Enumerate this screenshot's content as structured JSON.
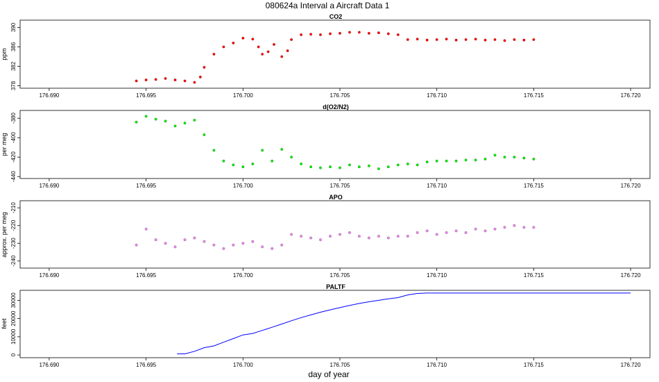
{
  "figure": {
    "title": "080624a   Interval a Aircraft Data 1",
    "xlabel": "day of year"
  },
  "colors": {
    "co2": "#ff0000",
    "o2n2": "#00ee00",
    "apo": "#ee82ee",
    "paltf": "#0000ff",
    "outline": "#000000"
  },
  "chart_data": [
    {
      "type": "scatter",
      "title": "CO2",
      "ylabel": "ppm",
      "xlim": [
        176.6885,
        176.721
      ],
      "ylim": [
        377.5,
        391.5
      ],
      "xticks": [
        176.69,
        176.695,
        176.7,
        176.705,
        176.71,
        176.715,
        176.72
      ],
      "xticklabels": [
        "176.690",
        "176.695",
        "176.700",
        "176.705",
        "176.710",
        "176.715",
        "176.720"
      ],
      "yticks": [
        378,
        382,
        386,
        390
      ],
      "yticklabels": [
        "378",
        "382",
        "386",
        "390"
      ],
      "color": "#ff0000",
      "x": [
        176.6945,
        176.695,
        176.6955,
        176.696,
        176.6965,
        176.697,
        176.6975,
        176.6978,
        176.698,
        176.6985,
        176.699,
        176.6995,
        176.7,
        176.7005,
        176.7008,
        176.701,
        176.7013,
        176.7016,
        176.702,
        176.7023,
        176.7025,
        176.703,
        176.7035,
        176.704,
        176.7045,
        176.705,
        176.7055,
        176.706,
        176.7065,
        176.707,
        176.7075,
        176.708,
        176.7085,
        176.709,
        176.7095,
        176.71,
        176.7105,
        176.711,
        176.7115,
        176.712,
        176.7125,
        176.713,
        176.7135,
        176.714,
        176.7145,
        176.715
      ],
      "y": [
        379.0,
        379.2,
        379.3,
        379.5,
        379.2,
        379.0,
        378.7,
        379.8,
        381.8,
        384.5,
        386.0,
        386.8,
        387.8,
        387.6,
        386.0,
        384.5,
        385.0,
        386.5,
        384.0,
        385.2,
        387.5,
        388.5,
        388.6,
        388.5,
        388.7,
        388.8,
        389.0,
        389.0,
        388.8,
        388.9,
        388.7,
        388.5,
        387.5,
        387.6,
        387.4,
        387.5,
        387.6,
        387.4,
        387.5,
        387.6,
        387.4,
        387.5,
        387.3,
        387.5,
        387.4,
        387.5
      ]
    },
    {
      "type": "scatter",
      "title": "d(O2/N2)",
      "ylabel": "per meg",
      "xlim": [
        176.6885,
        176.721
      ],
      "ylim": [
        -442,
        -372
      ],
      "xticks": [
        176.69,
        176.695,
        176.7,
        176.705,
        176.71,
        176.715,
        176.72
      ],
      "xticklabels": [
        "176.690",
        "176.695",
        "176.700",
        "176.705",
        "176.710",
        "176.715",
        "176.720"
      ],
      "yticks": [
        -440,
        -420,
        -400,
        -380
      ],
      "yticklabels": [
        "-440",
        "-420",
        "-400",
        "-380"
      ],
      "color": "#00ee00",
      "x": [
        176.6945,
        176.695,
        176.6955,
        176.696,
        176.6965,
        176.697,
        176.6975,
        176.698,
        176.6985,
        176.699,
        176.6995,
        176.7,
        176.7005,
        176.701,
        176.7015,
        176.702,
        176.7025,
        176.703,
        176.7035,
        176.704,
        176.7045,
        176.705,
        176.7055,
        176.706,
        176.7065,
        176.707,
        176.7075,
        176.708,
        176.7085,
        176.709,
        176.7095,
        176.71,
        176.7105,
        176.711,
        176.7115,
        176.712,
        176.7125,
        176.713,
        176.7135,
        176.714,
        176.7145,
        176.715
      ],
      "y": [
        -384,
        -378,
        -381,
        -383,
        -388,
        -385,
        -382,
        -397,
        -413,
        -424,
        -428,
        -430,
        -427,
        -413,
        -424,
        -412,
        -420,
        -427,
        -430,
        -431,
        -430,
        -431,
        -428,
        -430,
        -429,
        -432,
        -430,
        -428,
        -427,
        -428,
        -425,
        -424,
        -424,
        -424,
        -423,
        -423,
        -422,
        -418,
        -420,
        -420,
        -421,
        -422
      ]
    },
    {
      "type": "scatter",
      "title": "APO",
      "ylabel": "approx. per meg",
      "xlim": [
        176.6885,
        176.721
      ],
      "ylim": [
        -244,
        -206
      ],
      "xticks": [
        176.69,
        176.695,
        176.7,
        176.705,
        176.71,
        176.715,
        176.72
      ],
      "xticklabels": [
        "176.690",
        "176.695",
        "176.700",
        "176.705",
        "176.710",
        "176.715",
        "176.720"
      ],
      "yticks": [
        -240,
        -230,
        -220,
        -210
      ],
      "yticklabels": [
        "-240",
        "-230",
        "-220",
        "-210"
      ],
      "color": "#ee82ee",
      "x": [
        176.6945,
        176.695,
        176.6955,
        176.696,
        176.6965,
        176.697,
        176.6975,
        176.698,
        176.6985,
        176.699,
        176.6995,
        176.7,
        176.7005,
        176.701,
        176.7015,
        176.702,
        176.7025,
        176.703,
        176.7035,
        176.704,
        176.7045,
        176.705,
        176.7055,
        176.706,
        176.7065,
        176.707,
        176.7075,
        176.708,
        176.7085,
        176.709,
        176.7095,
        176.71,
        176.7105,
        176.711,
        176.7115,
        176.712,
        176.7125,
        176.713,
        176.7135,
        176.714,
        176.7145,
        176.715
      ],
      "y": [
        -231,
        -222,
        -228,
        -230,
        -232,
        -228,
        -227,
        -229,
        -231,
        -233,
        -231,
        -230,
        -229,
        -232,
        -233,
        -231,
        -225,
        -226,
        -227,
        -228,
        -226,
        -225,
        -224,
        -226,
        -227,
        -226,
        -227,
        -226,
        -226,
        -224,
        -223,
        -225,
        -224,
        -223,
        -224,
        -222,
        -223,
        -222,
        -221,
        -220,
        -221,
        -221
      ]
    },
    {
      "type": "line",
      "title": "PALTF",
      "ylabel": "feet",
      "xlim": [
        176.6885,
        176.721
      ],
      "ylim": [
        -1500,
        35500
      ],
      "xticks": [
        176.69,
        176.695,
        176.7,
        176.705,
        176.71,
        176.715,
        176.72
      ],
      "xticklabels": [
        "176.690",
        "176.695",
        "176.700",
        "176.705",
        "176.710",
        "176.715",
        "176.720"
      ],
      "yticks": [
        0,
        10000,
        20000,
        30000
      ],
      "yticklabels": [
        "0",
        "10000",
        "20000",
        "30000"
      ],
      "color": "#0000ff",
      "x": [
        176.6966,
        176.697,
        176.6975,
        176.698,
        176.6985,
        176.699,
        176.6995,
        176.7,
        176.7005,
        176.701,
        176.7015,
        176.702,
        176.7025,
        176.703,
        176.7035,
        176.704,
        176.7045,
        176.705,
        176.7055,
        176.706,
        176.7065,
        176.707,
        176.7075,
        176.708,
        176.7085,
        176.709,
        176.7095,
        176.71,
        176.711,
        176.712,
        176.713,
        176.714,
        176.715,
        176.716,
        176.717,
        176.718,
        176.719,
        176.72
      ],
      "y": [
        600,
        600,
        2000,
        4000,
        5000,
        7000,
        9000,
        11000,
        11800,
        13500,
        15200,
        17000,
        18800,
        20500,
        22000,
        23500,
        24800,
        26000,
        27200,
        28300,
        29200,
        30000,
        30800,
        31500,
        33000,
        33800,
        34000,
        34000,
        34000,
        34000,
        34000,
        34000,
        34000,
        34000,
        34000,
        34000,
        34000,
        34000
      ]
    }
  ]
}
